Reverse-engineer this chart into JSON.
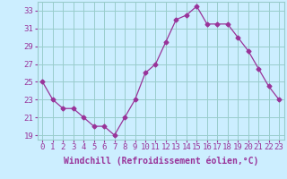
{
  "x": [
    0,
    1,
    2,
    3,
    4,
    5,
    6,
    7,
    8,
    9,
    10,
    11,
    12,
    13,
    14,
    15,
    16,
    17,
    18,
    19,
    20,
    21,
    22,
    23
  ],
  "y": [
    25,
    23,
    22,
    22,
    21,
    20,
    20,
    19,
    21,
    23,
    26,
    27,
    29.5,
    32,
    32.5,
    33.5,
    31.5,
    31.5,
    31.5,
    30,
    28.5,
    26.5,
    24.5,
    23
  ],
  "line_color": "#993399",
  "marker": "D",
  "marker_size": 2.5,
  "background_color": "#cceeff",
  "grid_color": "#99cccc",
  "xlabel": "Windchill (Refroidissement éolien,°C)",
  "xlabel_fontsize": 7,
  "tick_fontsize": 6.5,
  "xlim": [
    -0.5,
    23.5
  ],
  "ylim": [
    18.5,
    34
  ],
  "yticks": [
    19,
    21,
    23,
    25,
    27,
    29,
    31,
    33
  ],
  "xticks": [
    0,
    1,
    2,
    3,
    4,
    5,
    6,
    7,
    8,
    9,
    10,
    11,
    12,
    13,
    14,
    15,
    16,
    17,
    18,
    19,
    20,
    21,
    22,
    23
  ]
}
